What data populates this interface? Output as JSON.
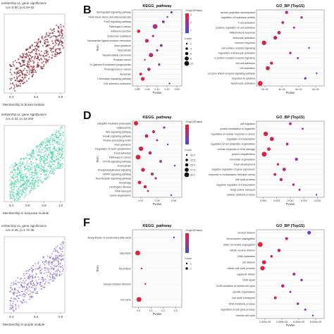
{
  "panels": {
    "B": "B",
    "D": "D",
    "F": "F"
  },
  "scatter": [
    {
      "title1": "embership vs. gene significance",
      "title2": "cor=0.56, p=6.2e-42",
      "xlabel": "Membership in brown module",
      "color": "#a33a4a",
      "xticks": [
        "0.4",
        "0.6",
        "0.8"
      ],
      "xlim": [
        0.2,
        0.95
      ],
      "ylim": [
        0,
        1
      ]
    },
    {
      "title1": "embership vs. gene significance",
      "title2": "cor=0.34, p=1e-200",
      "xlabel": "Membership in turquoise module",
      "color": "#4fd3a8",
      "xticks": [
        "0.4",
        "0.6",
        "0.8",
        "1.0"
      ],
      "xlim": [
        0.2,
        1.05
      ],
      "ylim": [
        0,
        1
      ]
    },
    {
      "title1": "embership vs. gene significance",
      "title2": "cor=0.45, p=1.7e-35",
      "xlabel": "Membership in purple module",
      "color": "#8c6bc6",
      "xticks": [
        "0.4",
        "0.6",
        "0.8"
      ],
      "xlim": [
        0.2,
        0.95
      ],
      "ylim": [
        0,
        1
      ]
    }
  ],
  "chart_data": [
    {
      "type": "scatter",
      "panel": "B-KEGG",
      "title": "KEGG_pathway",
      "xlabel": "Pvalue",
      "ylabel": "Term",
      "xticks": [
        "0.00",
        "0.05",
        "0.10",
        "0.15",
        "0.20"
      ],
      "xlim": [
        -0.01,
        0.23
      ],
      "legend_color_title": "-1*log10(Pvalue)",
      "legend_size_title": "Count",
      "legend_size_labels": [
        "2",
        "4",
        "6",
        "8",
        "10"
      ],
      "colorbar_ticks": [
        "3",
        "2",
        "1"
      ],
      "terms": [
        "Sphingolipid signaling pathway",
        "Fluid shear stress and atherosclerosis",
        "FoxO signaling pathway",
        "Pathways in cancer",
        "Adherens junction",
        "Endocrine resistance",
        "Neuroactive ligand-receptor interaction",
        "Axon guidance",
        "Necroptosis",
        "Hepatocellular carcinoma",
        "Prostate cancer",
        "Fc gamma R-mediated phagocytosis",
        "Proteoglycans in cancer",
        "Apoptosis",
        "Chemokine signaling pathway",
        "Cell adhesion molecules"
      ],
      "pvalues": [
        0.18,
        0.16,
        0.14,
        0.1,
        0.02,
        0.09,
        0.06,
        0.13,
        0.11,
        0.08,
        0.05,
        0.12,
        0.07,
        0.03,
        0.04,
        0.17
      ],
      "counts": [
        4,
        3,
        5,
        9,
        6,
        4,
        7,
        5,
        4,
        8,
        3,
        4,
        6,
        5,
        7,
        3
      ]
    },
    {
      "type": "scatter",
      "panel": "B-GO",
      "title": "GO_BP (Top15)",
      "xlabel": "Pvalue",
      "ylabel": "",
      "xticks": [
        "2e-04",
        "4e-04",
        "6e-04",
        "8e-04"
      ],
      "xlim": [
        0,
        0.0009
      ],
      "terms": [
        "neuron projection development",
        "regulation of hydrolase activity",
        "T cell activation",
        "positive regulation of cell activation",
        "inflammatory response",
        "leukocyte activation",
        "immune response",
        "cell surface receptor signaling",
        "regulation of leukocyte activation",
        "G protein-coupled receptor signaling",
        "cell-cell adhesion",
        "cell activation",
        "enzyme linked receptor signaling pathway",
        "response to cytokine",
        "lymphocyte activation"
      ],
      "pvalues": [
        0.0004,
        0.0006,
        0.00035,
        0.0005,
        0.0003,
        0.00025,
        0.0001,
        0.0007,
        0.00045,
        0.00055,
        0.0002,
        0.00015,
        0.0008,
        0.00065,
        5e-05
      ],
      "counts": [
        8,
        6,
        7,
        5,
        9,
        10,
        12,
        4,
        6,
        5,
        8,
        11,
        4,
        6,
        13
      ]
    },
    {
      "type": "scatter",
      "panel": "D-KEGG",
      "title": "KEGG_pathway",
      "xlabel": "Pvalue",
      "ylabel": "Term",
      "xticks": [
        "0.02",
        "0.04",
        "0.06"
      ],
      "xlim": [
        0,
        0.07
      ],
      "legend_color_title": "-1*log10(Pvalue)",
      "legend_size_title": "Count",
      "legend_size_labels": [
        "20.0",
        "22.5",
        "25.0",
        "27.5",
        "30.0"
      ],
      "terms": [
        "Ubiquitin mediated proteolysis",
        "Spliceosome",
        "Wnt signaling pathway",
        "Insulin signaling pathway",
        "Protein processing in ER",
        "Axon guidance",
        "Regulation of actin cytoskeleton",
        "Focal adhesion",
        "Pathways in cancer",
        "mTOR signaling pathway",
        "Endocytosis",
        "Phosphatidylinositol signaling",
        "MAPK signaling pathway",
        "Neurotrophin signaling pathway",
        "Autophagy",
        "Huntington disease",
        "RNA transport",
        "Lysine degradation"
      ],
      "pvalues": [
        0.005,
        0.045,
        0.03,
        0.02,
        0.035,
        0.05,
        0.012,
        0.025,
        0.008,
        0.04,
        0.06,
        0.015,
        0.028,
        0.033,
        0.01,
        0.018,
        0.022,
        0.055
      ],
      "counts": [
        28,
        22,
        24,
        26,
        21,
        20,
        29,
        25,
        30,
        23,
        20,
        27,
        24,
        22,
        26,
        25,
        21,
        20
      ]
    },
    {
      "type": "scatter",
      "panel": "D-GO",
      "title": "GO_BP (Top15)",
      "xlabel": "Pvalue",
      "ylabel": "",
      "xticks": [
        "0.000",
        "0.005",
        "0.010",
        "0.015",
        "0.020"
      ],
      "xlim": [
        -0.001,
        0.021
      ],
      "terms": [
        "cell migration",
        "protein localization to organelle",
        "regulation of cellular response to stress",
        "regulation of transcription",
        "regulation of cell projection organization",
        "cellular response to DNA damage",
        "protein ubiquitination",
        "chromatin organization",
        "heart development",
        "negative regulation of gene expression",
        "response to endoplasmic reticulum stress",
        "cell cycle process",
        "negative regulation of transcription",
        "Golgi vesicle transport",
        "cellular catabolic process"
      ],
      "pvalues": [
        0.01,
        0.014,
        0.002,
        0.004,
        0.009,
        0.003,
        0.0015,
        0.012,
        0.006,
        0.008,
        0.005,
        0.007,
        0.011,
        0.013,
        0.0185
      ],
      "counts": [
        20,
        18,
        25,
        24,
        20,
        22,
        26,
        21,
        19,
        22,
        20,
        21,
        19,
        18,
        17
      ]
    },
    {
      "type": "scatter",
      "panel": "F-KEGG",
      "title": "KEGG_pathway",
      "xlabel": "Pvalue",
      "ylabel": "Term",
      "xticks": [
        "0.0",
        "0.1",
        "0.2",
        "0.3"
      ],
      "xlim": [
        -0.02,
        0.36
      ],
      "legend_color_title": "-1*log10(Pvalue)",
      "legend_size_title": "Count",
      "legend_size_labels": [
        "1",
        "2"
      ],
      "terms": [
        "Biosynthesis of unsaturated fatty acids",
        "Glycolysis",
        "Alcoholism",
        "Herpes simplex infection",
        "Cell cycle"
      ],
      "pvalues": [
        0.3,
        0.02,
        0.05,
        0.08,
        0.03
      ],
      "counts": [
        1,
        2,
        1,
        1,
        2
      ]
    },
    {
      "type": "scatter",
      "panel": "F-GO",
      "title": "GO_BP (Top15)",
      "xlabel": "Pvalue",
      "ylabel": "",
      "xticks": [
        "2.000e-05",
        "4.000e-05",
        "6.000e-05",
        "8.000e-05"
      ],
      "xlim": [
        0,
        9e-05
      ],
      "terms": [
        "nuclear division",
        "chromosome segregation",
        "sister chromatid segregation",
        "mitotic nuclear division",
        "DNA replication",
        "cell division",
        "mitotic cell cycle process",
        "organelle fission",
        "DNA repair",
        "G2/M transition of mitotic cell cycle",
        "spindle organization",
        "cell cycle checkpoint",
        "DNA metabolic process",
        "regulation of cell cycle process",
        "meiotic cell cycle"
      ],
      "pvalues": [
        7e-05,
        4e-05,
        5e-06,
        3e-05,
        2e-05,
        1e-05,
        8e-06,
        5e-05,
        6e-05,
        3.5e-05,
        4.5e-05,
        2.5e-05,
        5.5e-05,
        6.5e-05,
        7.5e-05
      ],
      "counts": [
        9,
        7,
        12,
        8,
        6,
        10,
        11,
        7,
        6,
        8,
        5,
        7,
        6,
        5,
        4
      ]
    }
  ]
}
